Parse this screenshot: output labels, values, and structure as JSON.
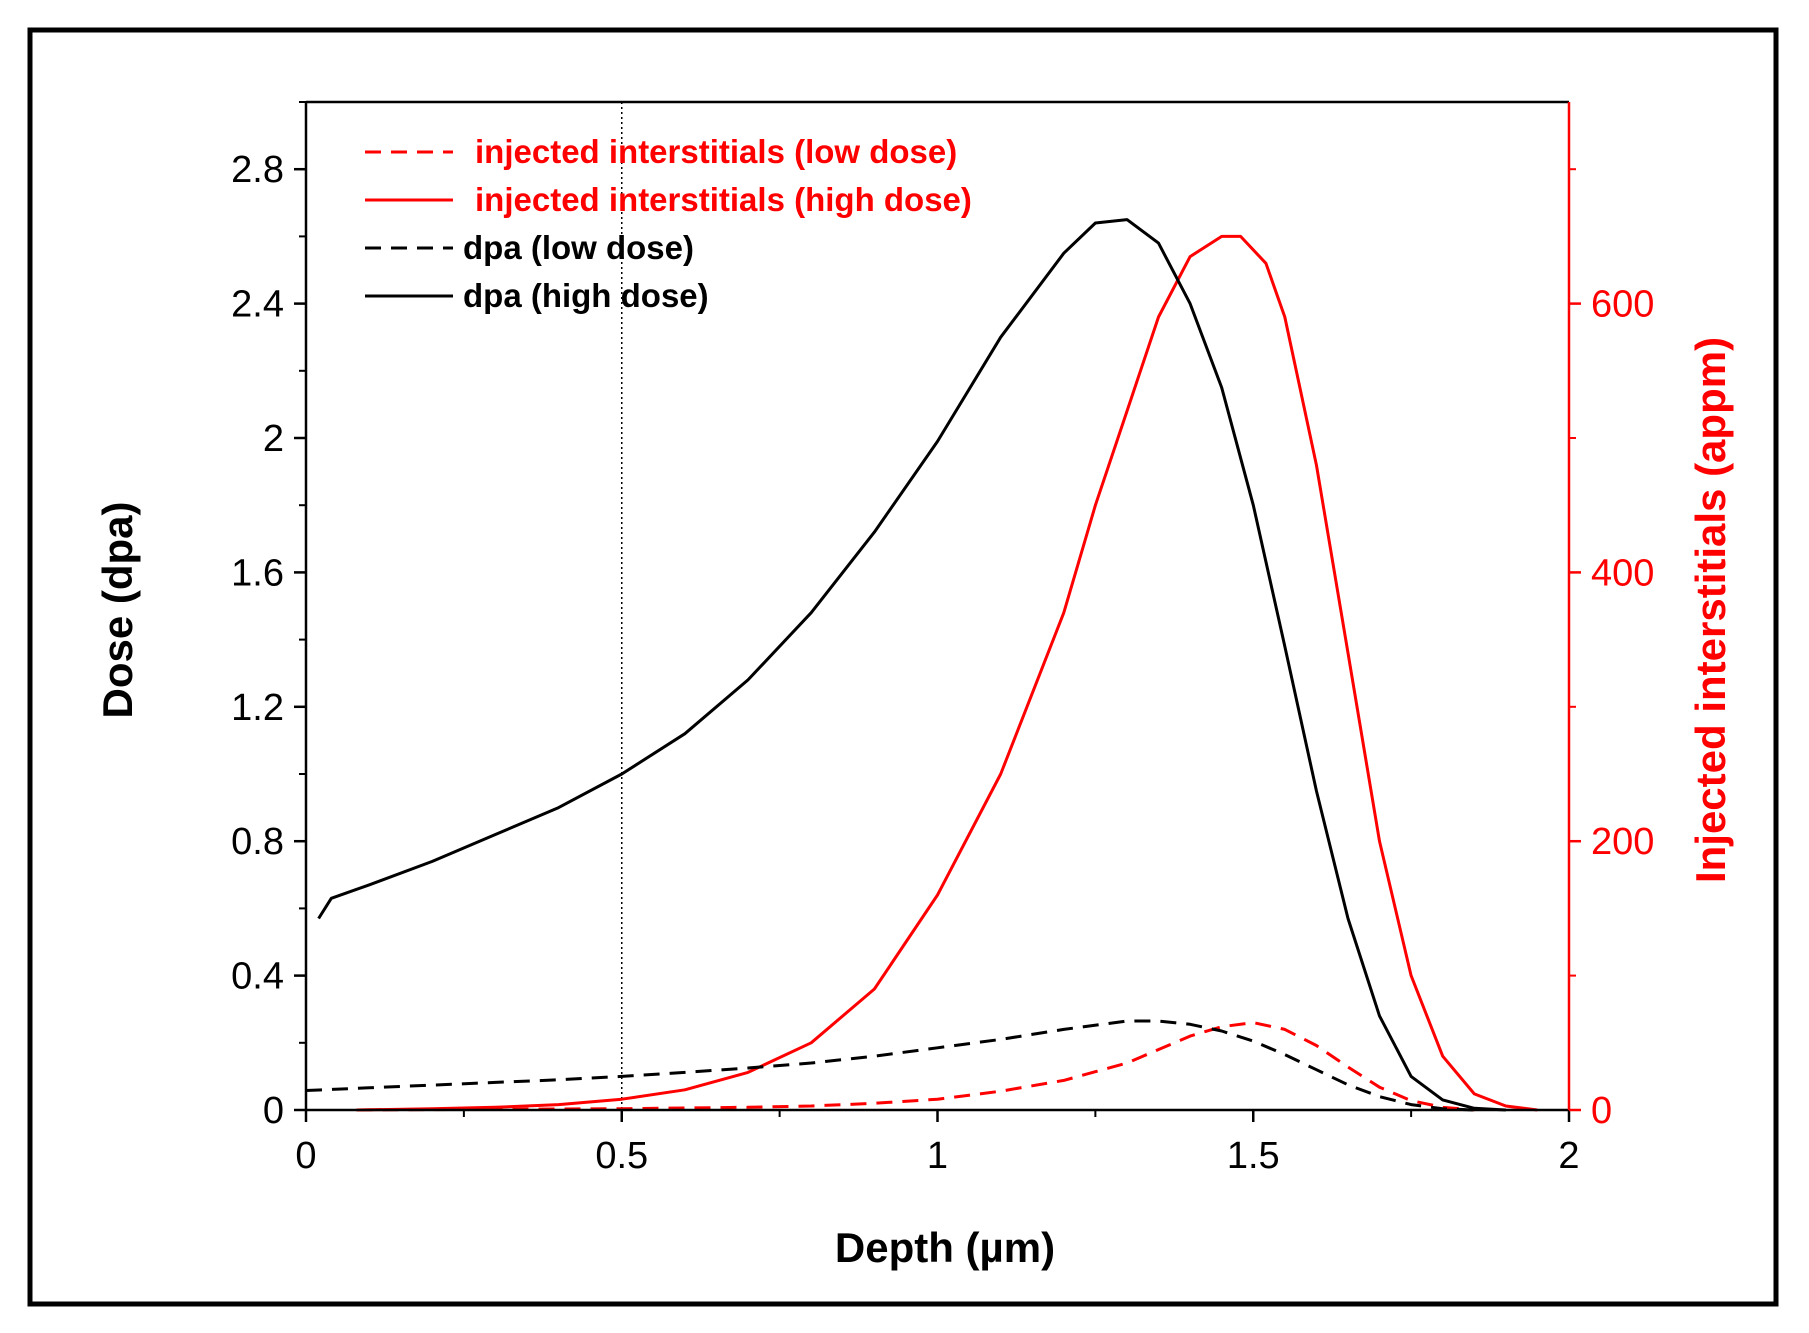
{
  "chart_data": {
    "type": "line",
    "title": "",
    "xlabel": "Depth (µm)",
    "ylabel": "Dose (dpa)",
    "y2label": "Injected interstitials (appm)",
    "xlim": [
      0,
      2
    ],
    "ylim": [
      0,
      3.0
    ],
    "y2lim": [
      0,
      750
    ],
    "x_ticks": [
      "0",
      "0.5",
      "1",
      "1.5",
      "2"
    ],
    "x_tick_values": [
      0,
      0.5,
      1,
      1.5,
      2
    ],
    "y_ticks": [
      "0",
      "0.4",
      "0.8",
      "1.2",
      "1.6",
      "2",
      "2.4",
      "2.8"
    ],
    "y_tick_values": [
      0,
      0.4,
      0.8,
      1.2,
      1.6,
      2.0,
      2.4,
      2.8
    ],
    "y2_ticks": [
      "0",
      "200",
      "400",
      "600"
    ],
    "y2_tick_values": [
      0,
      200,
      400,
      600
    ],
    "vertical_reference_line_x": 0.5,
    "legend_position": "top-left",
    "colors": {
      "black": "#000000",
      "red": "#ff0000"
    },
    "series": [
      {
        "name": "injected interstitials (low dose)",
        "axis": "right",
        "color": "#ff0000",
        "style": "dashed",
        "x": [
          0.08,
          0.3,
          0.5,
          0.7,
          0.8,
          0.9,
          1.0,
          1.1,
          1.2,
          1.3,
          1.4,
          1.45,
          1.5,
          1.55,
          1.6,
          1.65,
          1.7,
          1.75,
          1.8,
          1.85
        ],
        "values": [
          0,
          0.5,
          1,
          2,
          3,
          5,
          8,
          14,
          22,
          35,
          55,
          62,
          65,
          60,
          48,
          32,
          17,
          7,
          2,
          0
        ]
      },
      {
        "name": "injected interstitials (high dose)",
        "axis": "right",
        "color": "#ff0000",
        "style": "solid",
        "x": [
          0.08,
          0.2,
          0.3,
          0.4,
          0.5,
          0.6,
          0.7,
          0.8,
          0.9,
          1.0,
          1.1,
          1.2,
          1.25,
          1.3,
          1.35,
          1.4,
          1.45,
          1.48,
          1.52,
          1.55,
          1.6,
          1.65,
          1.7,
          1.75,
          1.8,
          1.85,
          1.9,
          1.95
        ],
        "values": [
          0,
          1,
          2,
          4,
          8,
          15,
          28,
          50,
          90,
          160,
          250,
          370,
          450,
          520,
          590,
          635,
          650,
          650,
          630,
          590,
          480,
          340,
          200,
          100,
          40,
          12,
          3,
          0
        ]
      },
      {
        "name": "dpa (low dose)",
        "axis": "left",
        "color": "#000000",
        "style": "dashed",
        "x": [
          0.0,
          0.1,
          0.2,
          0.3,
          0.4,
          0.5,
          0.6,
          0.7,
          0.8,
          0.9,
          1.0,
          1.1,
          1.2,
          1.3,
          1.35,
          1.4,
          1.45,
          1.5,
          1.55,
          1.6,
          1.65,
          1.7,
          1.75,
          1.8,
          1.85
        ],
        "values": [
          0.058,
          0.066,
          0.074,
          0.082,
          0.09,
          0.1,
          0.112,
          0.125,
          0.14,
          0.16,
          0.185,
          0.21,
          0.24,
          0.265,
          0.265,
          0.255,
          0.235,
          0.205,
          0.165,
          0.12,
          0.075,
          0.04,
          0.016,
          0.004,
          0
        ]
      },
      {
        "name": "dpa (high dose)",
        "axis": "left",
        "color": "#000000",
        "style": "solid",
        "x": [
          0.02,
          0.04,
          0.1,
          0.2,
          0.3,
          0.4,
          0.5,
          0.6,
          0.7,
          0.8,
          0.9,
          1.0,
          1.1,
          1.2,
          1.25,
          1.3,
          1.35,
          1.4,
          1.45,
          1.5,
          1.55,
          1.6,
          1.65,
          1.7,
          1.75,
          1.8,
          1.85,
          1.9
        ],
        "values": [
          0.57,
          0.63,
          0.67,
          0.74,
          0.82,
          0.9,
          1.0,
          1.12,
          1.28,
          1.48,
          1.72,
          1.99,
          2.3,
          2.55,
          2.64,
          2.65,
          2.58,
          2.4,
          2.15,
          1.8,
          1.38,
          0.95,
          0.57,
          0.28,
          0.1,
          0.03,
          0.005,
          0
        ]
      }
    ]
  }
}
